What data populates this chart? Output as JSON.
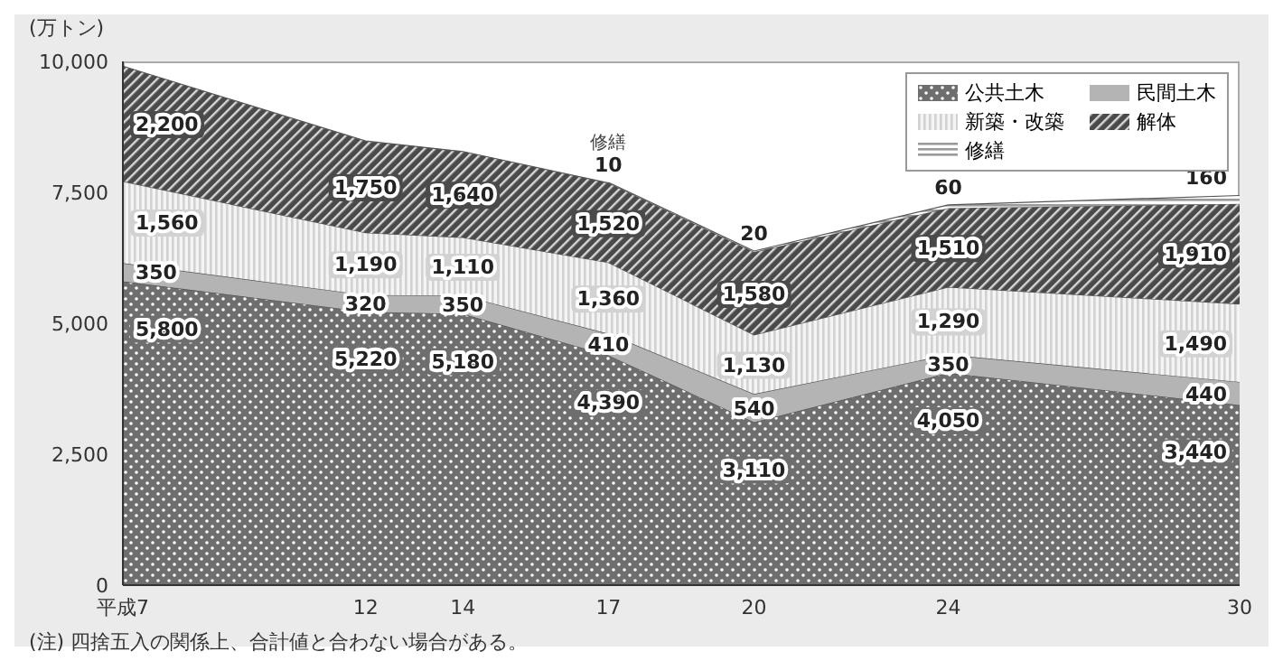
{
  "chart_data": {
    "type": "area",
    "stacked": true,
    "ylabel": "(万トン)",
    "x": [
      7,
      12,
      14,
      17,
      20,
      24,
      30
    ],
    "xlim": [
      7,
      30
    ],
    "xticks": [
      {
        "value": 7,
        "label": "平成7"
      },
      12,
      14,
      17,
      20,
      24,
      30
    ],
    "ylim": [
      0,
      10000
    ],
    "yticks": [
      0,
      {
        "value": 2500,
        "label": "2,500"
      },
      {
        "value": 5000,
        "label": "5,000"
      },
      {
        "value": 7500,
        "label": "7,500"
      },
      {
        "value": 10000,
        "label": "10,000"
      }
    ],
    "grid": false,
    "legend": "top right",
    "series": [
      {
        "name": "公共土木",
        "color": "#6e6e6e",
        "values": [
          5800,
          5220,
          5180,
          4390,
          3110,
          4050,
          3440
        ],
        "value_labels": [
          "5,800",
          "5,220",
          "5,180",
          "4,390",
          "3,110",
          "4,050",
          "3,440"
        ]
      },
      {
        "name": "民間土木",
        "color": "#b4b4b4",
        "values": [
          350,
          320,
          350,
          410,
          540,
          350,
          440
        ],
        "value_labels": [
          "350",
          "320",
          "350",
          "410",
          "540",
          "350",
          "440"
        ]
      },
      {
        "name": "新築・改築",
        "color": "#d2d2d2",
        "values": [
          1560,
          1190,
          1110,
          1360,
          1130,
          1290,
          1490
        ],
        "value_labels": [
          "1,560",
          "1,190",
          "1,110",
          "1,360",
          "1,130",
          "1,290",
          "1,490"
        ]
      },
      {
        "name": "解体",
        "color": "#4a4a4a",
        "values": [
          2200,
          1750,
          1640,
          1520,
          1580,
          1510,
          1910
        ],
        "value_labels": [
          "2,200",
          "1,750",
          "1,640",
          "1,520",
          "1,580",
          "1,510",
          "1,910"
        ]
      },
      {
        "name": "修繕",
        "color": "#9a9a9a",
        "values": [
          null,
          null,
          null,
          10,
          20,
          60,
          160
        ],
        "value_labels": [
          null,
          null,
          null,
          "10",
          "20",
          "60",
          "160"
        ]
      }
    ],
    "annotations": [
      {
        "text": "修繕",
        "x": 17,
        "y": 7690
      },
      "(注) 四捨五入の関係上、合計値と合わない場合がある。"
    ]
  }
}
